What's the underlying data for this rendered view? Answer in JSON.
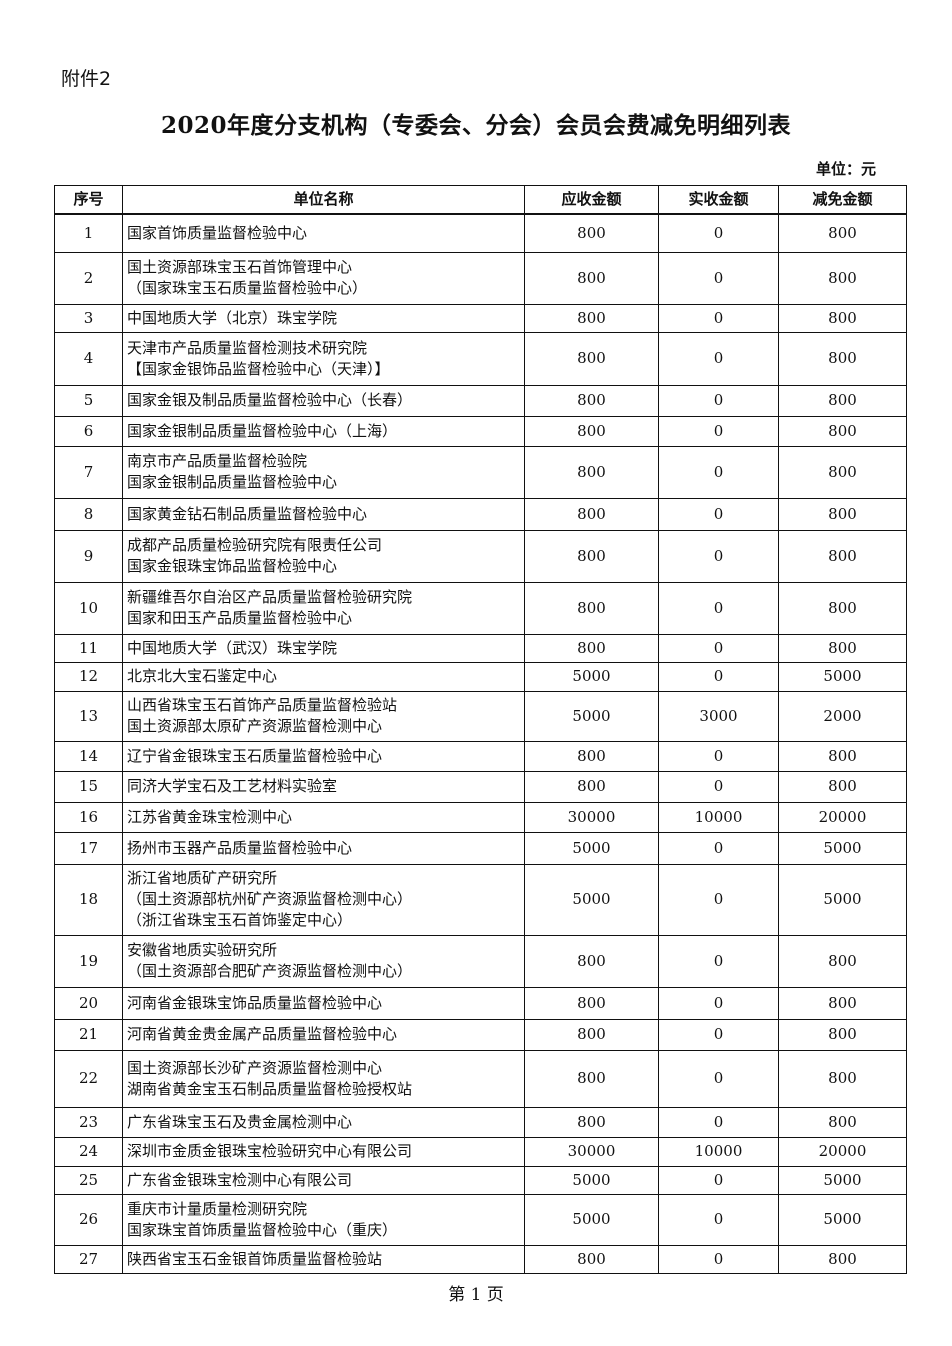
{
  "attachment_label": "附件2",
  "title": "2020年度分支机构（专委会、分会）会员会费减免明细列表",
  "unit": "单位：元",
  "headers": [
    "序号",
    "单位名称",
    "应收金额",
    "实收金额",
    "减免金额"
  ],
  "rows": [
    {
      "no": "1",
      "name": [
        "国家首饰质量监督检验中心"
      ],
      "due": "800",
      "paid": "0",
      "waived": "800"
    },
    {
      "no": "2",
      "name": [
        "国土资源部珠宝玉石首饰管理中心",
        "（国家珠宝玉石质量监督检验中心）"
      ],
      "due": "800",
      "paid": "0",
      "waived": "800"
    },
    {
      "no": "3",
      "name": [
        "中国地质大学（北京）珠宝学院"
      ],
      "due": "800",
      "paid": "0",
      "waived": "800"
    },
    {
      "no": "4",
      "name": [
        "天津市产品质量监督检测技术研究院",
        "【国家金银饰品监督检验中心（天津）】"
      ],
      "due": "800",
      "paid": "0",
      "waived": "800"
    },
    {
      "no": "5",
      "name": [
        "国家金银及制品质量监督检验中心（长春）"
      ],
      "due": "800",
      "paid": "0",
      "waived": "800"
    },
    {
      "no": "6",
      "name": [
        "国家金银制品质量监督检验中心（上海）"
      ],
      "due": "800",
      "paid": "0",
      "waived": "800"
    },
    {
      "no": "7",
      "name": [
        "南京市产品质量监督检验院",
        "国家金银制品质量监督检验中心"
      ],
      "due": "800",
      "paid": "0",
      "waived": "800"
    },
    {
      "no": "8",
      "name": [
        "国家黄金钻石制品质量监督检验中心"
      ],
      "due": "800",
      "paid": "0",
      "waived": "800"
    },
    {
      "no": "9",
      "name": [
        "成都产品质量检验研究院有限责任公司",
        "国家金银珠宝饰品监督检验中心"
      ],
      "due": "800",
      "paid": "0",
      "waived": "800"
    },
    {
      "no": "10",
      "name": [
        "新疆维吾尔自治区产品质量监督检验研究院",
        "国家和田玉产品质量监督检验中心"
      ],
      "due": "800",
      "paid": "0",
      "waived": "800"
    },
    {
      "no": "11",
      "name": [
        "中国地质大学（武汉）珠宝学院"
      ],
      "due": "800",
      "paid": "0",
      "waived": "800"
    },
    {
      "no": "12",
      "name": [
        "北京北大宝石鉴定中心"
      ],
      "due": "5000",
      "paid": "0",
      "waived": "5000"
    },
    {
      "no": "13",
      "name": [
        "山西省珠宝玉石首饰产品质量监督检验站",
        "国土资源部太原矿产资源监督检测中心"
      ],
      "due": "5000",
      "paid": "3000",
      "waived": "2000"
    },
    {
      "no": "14",
      "name": [
        "辽宁省金银珠宝玉石质量监督检验中心"
      ],
      "due": "800",
      "paid": "0",
      "waived": "800"
    },
    {
      "no": "15",
      "name": [
        "同济大学宝石及工艺材料实验室"
      ],
      "due": "800",
      "paid": "0",
      "waived": "800"
    },
    {
      "no": "16",
      "name": [
        "江苏省黄金珠宝检测中心"
      ],
      "due": "30000",
      "paid": "10000",
      "waived": "20000"
    },
    {
      "no": "17",
      "name": [
        "扬州市玉器产品质量监督检验中心"
      ],
      "due": "5000",
      "paid": "0",
      "waived": "5000"
    },
    {
      "no": "18",
      "name": [
        "浙江省地质矿产研究所",
        "（国土资源部杭州矿产资源监督检测中心）",
        "（浙江省珠宝玉石首饰鉴定中心）"
      ],
      "due": "5000",
      "paid": "0",
      "waived": "5000"
    },
    {
      "no": "19",
      "name": [
        "安徽省地质实验研究所",
        "（国土资源部合肥矿产资源监督检测中心）"
      ],
      "due": "800",
      "paid": "0",
      "waived": "800"
    },
    {
      "no": "20",
      "name": [
        "河南省金银珠宝饰品质量监督检验中心"
      ],
      "due": "800",
      "paid": "0",
      "waived": "800"
    },
    {
      "no": "21",
      "name": [
        "河南省黄金贵金属产品质量监督检验中心"
      ],
      "due": "800",
      "paid": "0",
      "waived": "800"
    },
    {
      "no": "22",
      "name": [
        "国土资源部长沙矿产资源监督检测中心",
        "湖南省黄金宝玉石制品质量监督检验授权站"
      ],
      "due": "800",
      "paid": "0",
      "waived": "800"
    },
    {
      "no": "23",
      "name": [
        "广东省珠宝玉石及贵金属检测中心"
      ],
      "due": "800",
      "paid": "0",
      "waived": "800"
    },
    {
      "no": "24",
      "name": [
        "深圳市金质金银珠宝检验研究中心有限公司"
      ],
      "due": "30000",
      "paid": "10000",
      "waived": "20000"
    },
    {
      "no": "25",
      "name": [
        "广东省金银珠宝检测中心有限公司"
      ],
      "due": "5000",
      "paid": "0",
      "waived": "5000"
    },
    {
      "no": "26",
      "name": [
        "重庆市计量质量检测研究院",
        "国家珠宝首饰质量监督检验中心（重庆）"
      ],
      "due": "5000",
      "paid": "0",
      "waived": "5000"
    },
    {
      "no": "27",
      "name": [
        "陕西省宝玉石金银首饰质量监督检验站"
      ],
      "due": "800",
      "paid": "0",
      "waived": "800"
    }
  ],
  "footer": "第 1 页"
}
